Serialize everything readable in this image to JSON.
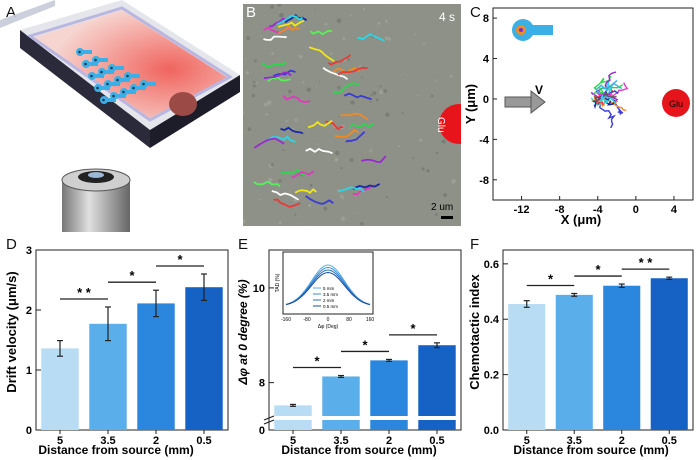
{
  "panel_labels": {
    "a": "A",
    "b": "B",
    "c": "C",
    "d": "D",
    "e": "E",
    "f": "F"
  },
  "micrograph": {
    "time_label": "4 s",
    "scale_label": "2 um",
    "source_label": "Glu"
  },
  "colors": {
    "light": "#b7dcf4",
    "mid": "#5aaee9",
    "dark": "#2b86dd",
    "darkest": "#1662c4",
    "glu": "#e8141c",
    "track": "#3ab0e6"
  },
  "chart_data": [
    {
      "id": "C",
      "type": "scatter",
      "xlabel": "X (μm)",
      "ylabel": "Y (μm)",
      "xlim": [
        -15,
        6
      ],
      "ylim": [
        -10,
        9
      ],
      "xticks": [
        "-12",
        "-8",
        "-4",
        "0",
        "4"
      ],
      "yticks": [
        "8",
        "4",
        "0",
        "-4",
        "-8"
      ],
      "velocity_label": "V",
      "source_label": "Glu",
      "source_position": [
        5,
        0
      ]
    },
    {
      "id": "D",
      "type": "bar",
      "categories": [
        "5",
        "3.5",
        "2",
        "0.5"
      ],
      "values": [
        1.36,
        1.77,
        2.11,
        2.38
      ],
      "errors": [
        0.13,
        0.28,
        0.22,
        0.22
      ],
      "xlabel": "Distance from source (mm)",
      "ylabel": "Drift velocity (μm/s)",
      "ylim": [
        0,
        3
      ],
      "yticks": [
        "0",
        "1",
        "2",
        "3"
      ],
      "significance": [
        {
          "from": 0,
          "to": 1,
          "label": "* *"
        },
        {
          "from": 1,
          "to": 2,
          "label": "*"
        },
        {
          "from": 2,
          "to": 3,
          "label": "*"
        }
      ]
    },
    {
      "id": "E",
      "type": "bar",
      "categories": [
        "5",
        "3.5",
        "2",
        "0.5"
      ],
      "values": [
        7.52,
        8.13,
        8.47,
        8.79
      ],
      "errors": [
        0.02,
        0.02,
        0.02,
        0.05
      ],
      "xlabel": "Distance from source (mm)",
      "ylabel": "Δφ at 0 degree (%)",
      "ylim": [
        7.0,
        10.8
      ],
      "yticks": [
        "8",
        "10"
      ],
      "axis_break": true,
      "zero_tick": "0",
      "significance": [
        {
          "from": 0,
          "to": 1,
          "label": "*"
        },
        {
          "from": 1,
          "to": 2,
          "label": "*"
        },
        {
          "from": 2,
          "to": 3,
          "label": "*"
        }
      ],
      "inset": {
        "type": "line",
        "xlabel": "Δφ (Deg)",
        "ylabel": "TAD (%)",
        "xticks": [
          "-160",
          "-80",
          "0",
          "80",
          "160"
        ],
        "legend": [
          "5 mm",
          "3.5 mm",
          "2 mm",
          "0.5 mm"
        ]
      }
    },
    {
      "id": "F",
      "type": "bar",
      "categories": [
        "5",
        "3.5",
        "2",
        "0.5"
      ],
      "values": [
        0.455,
        0.488,
        0.521,
        0.548
      ],
      "errors": [
        0.012,
        0.005,
        0.006,
        0.004
      ],
      "xlabel": "Distance from source (mm)",
      "ylabel": "Chemotactic index",
      "ylim": [
        0,
        0.65
      ],
      "yticks": [
        "0.0",
        "0.2",
        "0.4",
        "0.6"
      ],
      "significance": [
        {
          "from": 0,
          "to": 1,
          "label": "*"
        },
        {
          "from": 1,
          "to": 2,
          "label": "*"
        },
        {
          "from": 2,
          "to": 3,
          "label": "* *"
        }
      ]
    }
  ]
}
